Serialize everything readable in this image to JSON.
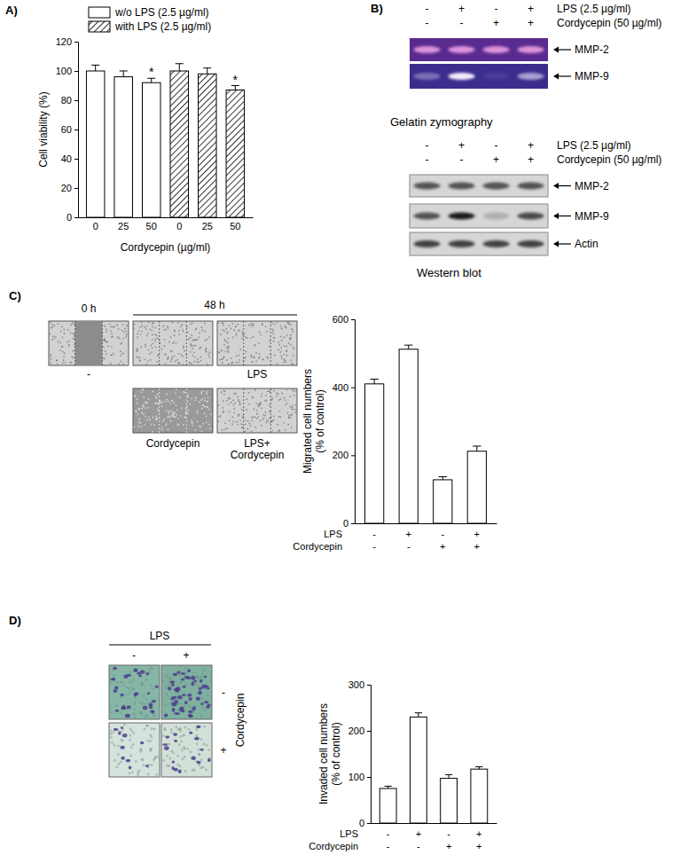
{
  "chart_data": [
    {
      "type": "bar",
      "y_label": [
        "Cell viability (%)"
      ],
      "x_label": "Cordycepin (µg/ml)",
      "categories": [
        "0",
        "25",
        "50",
        "0",
        "25",
        "50"
      ],
      "series": [
        {
          "name": "w/o LPS (2.5 µg/ml)",
          "color": "#ffffff",
          "values": [
            100,
            96,
            92,
            null,
            null,
            null
          ],
          "errors": [
            4,
            4,
            3,
            null,
            null,
            null
          ]
        },
        {
          "name": "with LPS (2.5 µg/ml)",
          "color": "#000000",
          "values": [
            null,
            null,
            null,
            100,
            98,
            87
          ],
          "errors": [
            null,
            null,
            null,
            5,
            4,
            3
          ]
        }
      ],
      "ylim": [
        0,
        120
      ],
      "yticks": [
        0,
        20,
        40,
        60,
        80,
        100,
        120
      ],
      "legend": "top",
      "annotations": [
        {
          "text": "*",
          "series": 0,
          "index": 2
        },
        {
          "text": "*",
          "series": 1,
          "index": 5
        }
      ]
    },
    {
      "type": "bar",
      "y_label": [
        "Migrated cell numbers",
        "(% of control)"
      ],
      "categories": [
        null,
        null,
        null,
        null
      ],
      "values": [
        410,
        512,
        128,
        212
      ],
      "errors": [
        14,
        12,
        9,
        15
      ],
      "color": "#ffffff",
      "ylim": [
        0,
        600
      ],
      "yticks": [
        0,
        200,
        400,
        600
      ],
      "conditions": [
        {
          "label": "LPS",
          "marks": [
            "-",
            "+",
            "-",
            "+"
          ]
        },
        {
          "label": "Cordycepin",
          "marks": [
            "-",
            "-",
            "+",
            "+"
          ]
        }
      ]
    },
    {
      "type": "bar",
      "y_label": [
        "Invaded cell numbers",
        "(% of control)"
      ],
      "categories": [
        null,
        null,
        null,
        null
      ],
      "values": [
        75,
        230,
        97,
        117
      ],
      "errors": [
        5,
        9,
        8,
        5
      ],
      "color": "#ffffff",
      "ylim": [
        0,
        300
      ],
      "yticks": [
        0,
        100,
        200,
        300
      ],
      "conditions": [
        {
          "label": "LPS",
          "marks": [
            "-",
            "+",
            "-",
            "+"
          ]
        },
        {
          "label": "Cordycepin",
          "marks": [
            "-",
            "-",
            "+",
            "+"
          ]
        }
      ]
    }
  ],
  "panel_a_label": "A)",
  "blots": [
    {
      "panel_label": "B)",
      "caption": "Gelatin zymography",
      "conditions": [
        {
          "label": "LPS (2.5 µg/ml)",
          "marks": [
            "-",
            "+",
            "-",
            "+"
          ]
        },
        {
          "label": "Cordycepin (50 µg/ml)",
          "marks": [
            "-",
            "-",
            "+",
            "+"
          ]
        }
      ],
      "bands": [
        {
          "label": "MMP-2",
          "intensity": [
            0.85,
            0.85,
            0.85,
            0.85
          ]
        },
        {
          "label": "MMP-9",
          "intensity": [
            0.35,
            1,
            0.08,
            0.6
          ]
        }
      ]
    },
    {
      "caption": "Western blot",
      "conditions": [
        {
          "label": "LPS (2.5 µg/ml)",
          "marks": [
            "-",
            "+",
            "-",
            "+"
          ]
        },
        {
          "label": "Cordycepin (50 µg/ml)",
          "marks": [
            "-",
            "-",
            "+",
            "+"
          ]
        }
      ],
      "bands": [
        {
          "label": "MMP-2",
          "intensity": [
            0.7,
            0.7,
            0.7,
            0.7
          ]
        },
        {
          "label": "MMP-9",
          "intensity": [
            0.7,
            1,
            0.2,
            0.75
          ]
        },
        {
          "label": "Actin",
          "intensity": [
            0.8,
            0.8,
            0.8,
            0.8
          ]
        }
      ]
    }
  ],
  "scratch_assay": {
    "panel_label": "C)",
    "headers": [
      "0 h",
      "48 h"
    ],
    "labels": [
      [
        "-"
      ],
      [
        "LPS"
      ],
      [
        "Cordycepin"
      ],
      [
        "LPS+",
        "Cordycepin"
      ]
    ]
  },
  "invasion_assay": {
    "panel_label": "D)",
    "column_header": "LPS",
    "columns": [
      "-",
      "+"
    ],
    "row_header": "Cordycepin",
    "rows": [
      "-",
      "+"
    ]
  }
}
